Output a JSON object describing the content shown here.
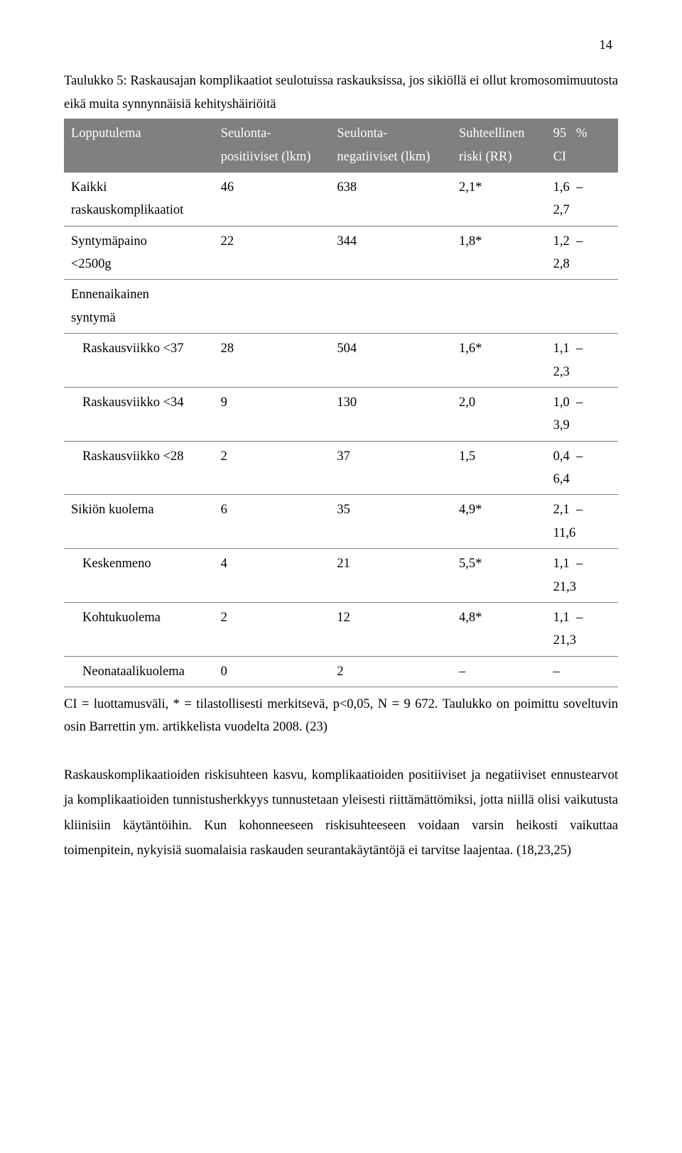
{
  "page_number": "14",
  "table_title": "Taulukko 5: Raskausajan komplikaatiot seulotuissa raskauksissa, jos sikiöllä ei ollut kromosomimuutosta eikä muita synnynnäisiä kehityshäiriöitä",
  "table": {
    "columns": [
      "Lopputulema",
      "Seulonta-positiiviset (lkm)",
      "Seulonta-negatiiviset (lkm)",
      "Suhteellinen riski (RR)",
      "95 % CI"
    ],
    "column_lines": [
      [
        "Lopputulema"
      ],
      [
        "Seulonta-",
        "positiiviset (lkm)"
      ],
      [
        "Seulonta-",
        "negatiiviset (lkm)"
      ],
      [
        "Suhteellinen",
        "riski (RR)"
      ],
      [
        "95   %",
        "CI"
      ]
    ],
    "rows": [
      {
        "indent": false,
        "label_lines": [
          "Kaikki",
          "raskauskomplikaatiot"
        ],
        "c2": "46",
        "c3": "638",
        "c4": "2,1*",
        "c5_lines": [
          "1,6  –",
          "2,7"
        ]
      },
      {
        "indent": false,
        "label_lines": [
          "Syntymäpaino",
          "<2500g"
        ],
        "c2": "22",
        "c3": "344",
        "c4": "1,8*",
        "c5_lines": [
          "1,2  –",
          "2,8"
        ]
      },
      {
        "indent": false,
        "label_lines": [
          "Ennenaikainen",
          "syntymä"
        ],
        "c2": "",
        "c3": "",
        "c4": "",
        "c5_lines": []
      },
      {
        "indent": true,
        "no_border": false,
        "label_lines": [
          "Raskausviikko <37"
        ],
        "c2": "28",
        "c3": "504",
        "c4": "1,6*",
        "c5_lines": [
          "1,1  –",
          "2,3"
        ]
      },
      {
        "indent": true,
        "label_lines": [
          "Raskausviikko <34"
        ],
        "c2": "9",
        "c3": "130",
        "c4": "2,0",
        "c5_lines": [
          "1,0  –",
          "3,9"
        ]
      },
      {
        "indent": true,
        "label_lines": [
          "Raskausviikko <28"
        ],
        "c2": "2",
        "c3": "37",
        "c4": "1,5",
        "c5_lines": [
          "0,4  –",
          "6,4"
        ]
      },
      {
        "indent": false,
        "label_lines": [
          "Sikiön kuolema"
        ],
        "c2": "6",
        "c3": "35",
        "c4": "4,9*",
        "c5_lines": [
          "2,1  –",
          "11,6"
        ]
      },
      {
        "indent": true,
        "label_lines": [
          "Keskenmeno"
        ],
        "c2": "4",
        "c3": "21",
        "c4": "5,5*",
        "c5_lines": [
          "1,1  –",
          "21,3"
        ]
      },
      {
        "indent": true,
        "label_lines": [
          "Kohtukuolema"
        ],
        "c2": "2",
        "c3": "12",
        "c4": "4,8*",
        "c5_lines": [
          "1,1  –",
          "21,3"
        ]
      },
      {
        "indent": true,
        "label_lines": [
          "Neonataalikuolema"
        ],
        "c2": "0",
        "c3": "2",
        "c4": "–",
        "c5_lines": [
          "–"
        ]
      }
    ]
  },
  "footnote": "CI = luottamusväli, * = tilastollisesti merkitsevä, p<0,05, N = 9 672. Taulukko on poimittu soveltuvin osin Barrettin ym. artikkelista vuodelta 2008. (23)",
  "paragraph": "Raskauskomplikaatioiden riskisuhteen kasvu, komplikaatioiden positiiviset ja negatiiviset ennustearvot ja komplikaatioiden tunnistusherkkyys tunnustetaan yleisesti riittämättömiksi, jotta niillä olisi vaikutusta kliinisiin käytäntöihin. Kun kohonneeseen riskisuhteeseen voidaan varsin heikosti vaikuttaa toimenpitein, nykyisiä suomalaisia raskauden seurantakäytäntöjä ei tarvitse laajentaa. (18,23,25)",
  "colors": {
    "header_bg": "#808080",
    "header_text": "#ffffff",
    "border": "#808080",
    "body_text": "#000000",
    "background": "#ffffff"
  }
}
